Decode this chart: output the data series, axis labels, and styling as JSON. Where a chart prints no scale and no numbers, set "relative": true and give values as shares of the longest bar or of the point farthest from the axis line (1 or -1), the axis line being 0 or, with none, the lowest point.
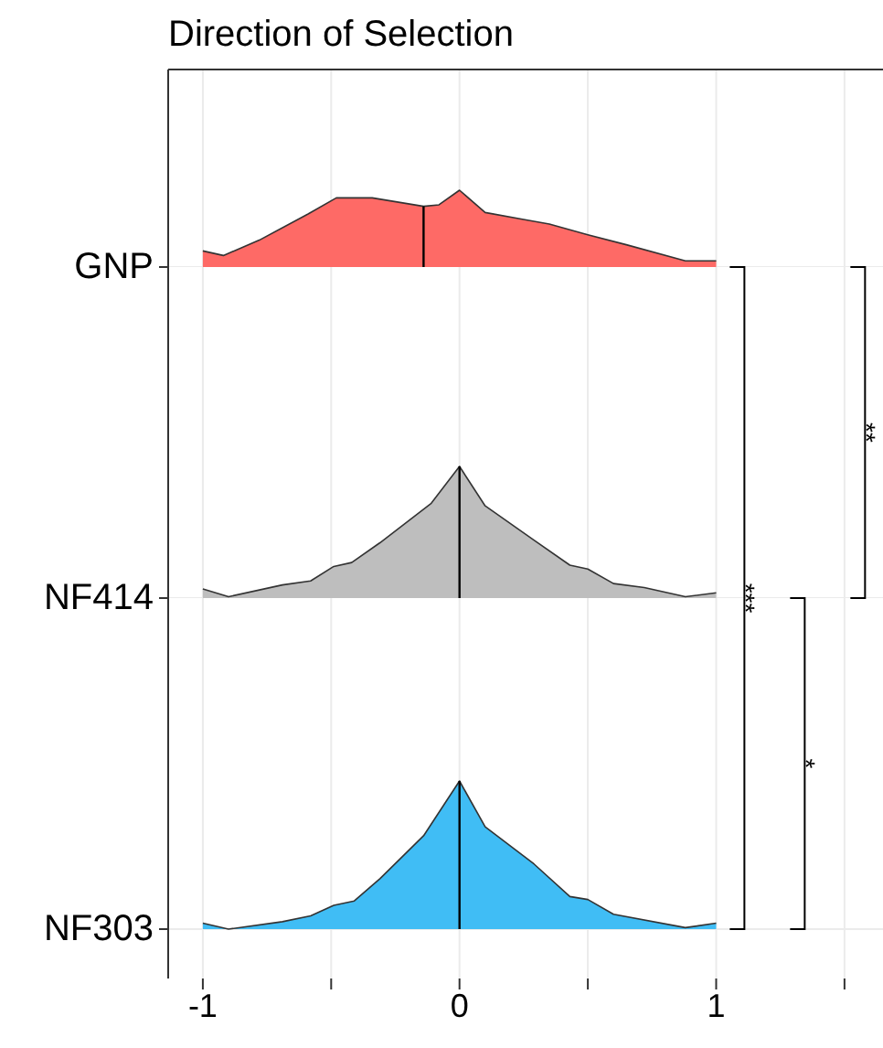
{
  "chart_data": [
    {
      "type": "area",
      "title": "Direction of Selection",
      "ylabel": "GNP",
      "relative": true,
      "grid": true,
      "tick_labels": false,
      "color": "#fe6a66",
      "xlim": [
        -1.135,
        1.65
      ],
      "xticks": [
        -1,
        {
          "value": -0.5,
          "label": null
        },
        0,
        {
          "value": 0.5,
          "label": null
        },
        1,
        {
          "value": 1.5,
          "label": null
        }
      ],
      "x": [
        -1,
        -0.92,
        -0.78,
        -0.59,
        -0.48,
        -0.34,
        -0.14,
        -0.08,
        0,
        0.1,
        0.25,
        0.35,
        0.5,
        0.65,
        0.88,
        1
      ],
      "values": [
        0.21,
        0.15,
        0.35,
        0.69,
        0.9,
        0.9,
        0.79,
        0.81,
        1,
        0.71,
        0.62,
        0.56,
        0.42,
        0.29,
        0.08,
        0.08
      ],
      "ref_lines": [
        {
          "axis": "x",
          "value": -0.14,
          "color": "#000000"
        }
      ]
    },
    {
      "type": "area",
      "ylabel": "NF414",
      "relative": true,
      "grid": true,
      "tick_labels": false,
      "color": "#bebebe",
      "xlim": [
        -1.135,
        1.65
      ],
      "xticks": [
        -1,
        {
          "value": -0.5,
          "label": null
        },
        0,
        {
          "value": 0.5,
          "label": null
        },
        1,
        {
          "value": 1.5,
          "label": null
        }
      ],
      "x": [
        -1,
        -0.9,
        -0.69,
        -0.58,
        -0.49,
        -0.42,
        -0.31,
        -0.11,
        0,
        0.1,
        0.29,
        0.43,
        0.5,
        0.6,
        0.72,
        0.88,
        1
      ],
      "values": [
        0.07,
        0.01,
        0.1,
        0.13,
        0.24,
        0.27,
        0.42,
        0.72,
        1,
        0.7,
        0.44,
        0.25,
        0.22,
        0.11,
        0.08,
        0.01,
        0.04
      ],
      "ref_lines": [
        {
          "axis": "x",
          "value": 0,
          "color": "#000000"
        }
      ]
    },
    {
      "type": "area",
      "ylabel": "NF303",
      "relative": true,
      "grid": true,
      "tick_labels": "x",
      "color": "#40bdf5",
      "xlim": [
        -1.135,
        1.65
      ],
      "xticks": [
        -1,
        {
          "value": -0.5,
          "label": null
        },
        0,
        {
          "value": 0.5,
          "label": null
        },
        1,
        {
          "value": 1.5,
          "label": null
        }
      ],
      "x": [
        -1,
        -0.9,
        -0.69,
        -0.58,
        -0.49,
        -0.41,
        -0.31,
        -0.14,
        0,
        0.1,
        0.29,
        0.43,
        0.5,
        0.6,
        0.88,
        1
      ],
      "values": [
        0.04,
        0,
        0.05,
        0.09,
        0.16,
        0.19,
        0.34,
        0.63,
        1,
        0.69,
        0.44,
        0.22,
        0.2,
        0.1,
        0.01,
        0.04
      ],
      "ref_lines": [
        {
          "axis": "x",
          "value": 0,
          "color": "#000000"
        }
      ],
      "annotations": [
        "***",
        "**",
        "*"
      ]
    }
  ]
}
